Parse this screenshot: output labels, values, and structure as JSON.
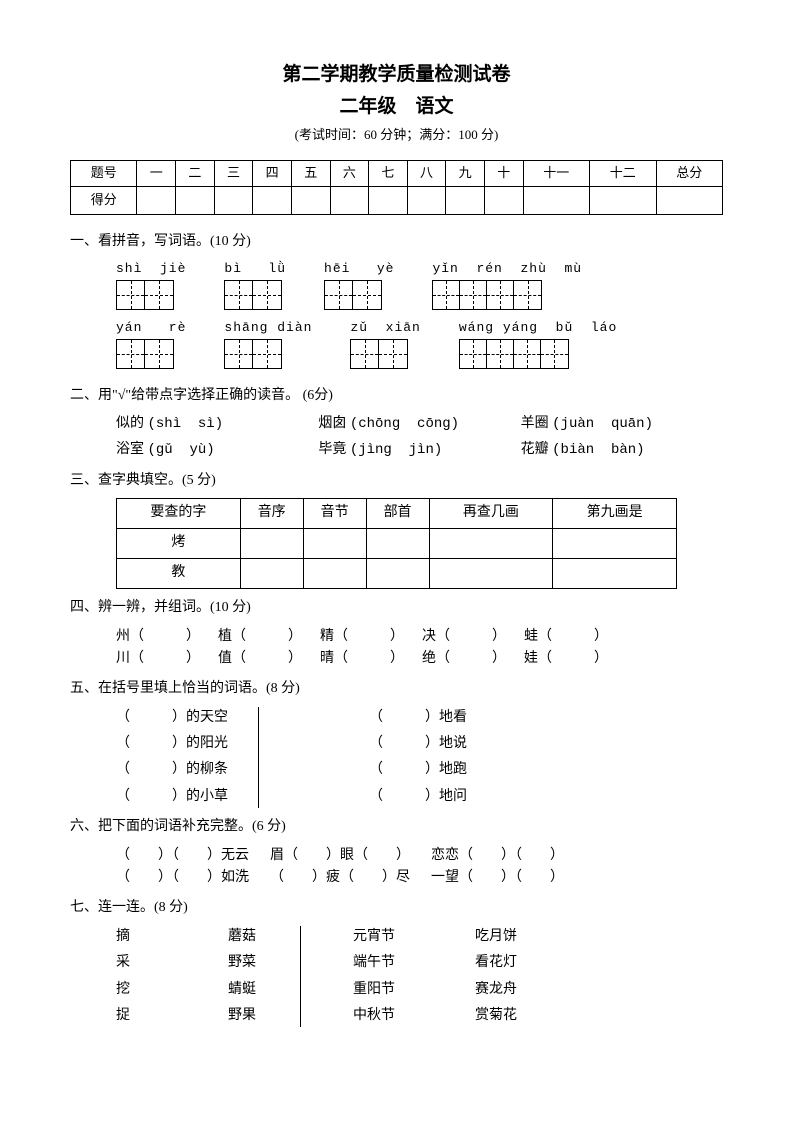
{
  "header": {
    "title": "第二学期教学质量检测试卷",
    "subtitle": "二年级　语文",
    "info": "(考试时间：60 分钟；满分：100 分)"
  },
  "score_table": {
    "row_labels": [
      "题号",
      "得分"
    ],
    "columns": [
      "一",
      "二",
      "三",
      "四",
      "五",
      "六",
      "七",
      "八",
      "九",
      "十",
      "十一",
      "十二",
      "总分"
    ]
  },
  "q1": {
    "head": "一、看拼音，写词语。(10 分)",
    "rows": [
      [
        {
          "pinyin": "shì  jiè",
          "boxes": 2
        },
        {
          "pinyin": "bì   lǜ",
          "boxes": 2
        },
        {
          "pinyin": "hēi   yè",
          "boxes": 2
        },
        {
          "pinyin": "yǐn  rén  zhù  mù",
          "boxes": 4
        }
      ],
      [
        {
          "pinyin": "yán   rè",
          "boxes": 2
        },
        {
          "pinyin": "shāng diàn",
          "boxes": 2
        },
        {
          "pinyin": "zǔ  xiān",
          "boxes": 2
        },
        {
          "pinyin": "wáng yáng  bǔ  láo",
          "boxes": 4
        }
      ]
    ]
  },
  "q2": {
    "head": "二、用\"√\"给带点字选择正确的读音。 (6分)",
    "items": [
      [
        "似的 ",
        "(shì  sì)"
      ],
      [
        "烟囱 ",
        "(chōng  cōng)"
      ],
      [
        "羊圈 ",
        "(juàn  quān)"
      ],
      [
        "浴室 ",
        "(gǔ  yù)"
      ],
      [
        "毕竟 ",
        "(jìng  jìn)"
      ],
      [
        "花瓣 ",
        "(biàn  bàn)"
      ]
    ]
  },
  "q3": {
    "head": "三、查字典填空。(5 分)",
    "headers": [
      "要查的字",
      "音序",
      "音节",
      "部首",
      "再查几画",
      "第九画是"
    ],
    "rows": [
      "烤",
      "教"
    ]
  },
  "q4": {
    "head": "四、辨一辨，并组词。(10 分)",
    "pairs": [
      [
        "州",
        "川"
      ],
      [
        "植",
        "值"
      ],
      [
        "精",
        "晴"
      ],
      [
        "决",
        "绝"
      ],
      [
        "蛙",
        "娃"
      ]
    ]
  },
  "q5": {
    "head": "五、在括号里填上恰当的词语。(8 分)",
    "left": [
      "的天空",
      "的阳光",
      "的柳条",
      "的小草"
    ],
    "right": [
      "地看",
      "地说",
      "地跑",
      "地问"
    ]
  },
  "q6": {
    "head": "六、把下面的词语补充完整。(6 分)",
    "lines": [
      "（　　）（　　）无云      眉（　　）眼（　　）      恋恋（　　）（　　）",
      "（　　）（　　）如洗      （　　）疲（　　）尽      一望（　　）（　　）"
    ]
  },
  "q7": {
    "head": "七、连一连。(8 分)",
    "colA": [
      "摘",
      "采",
      "挖",
      "捉"
    ],
    "colB": [
      "蘑菇",
      "野菜",
      "蜻蜓",
      "野果"
    ],
    "colC": [
      "元宵节",
      "端午节",
      "重阳节",
      "中秋节"
    ],
    "colD": [
      "吃月饼",
      "看花灯",
      "赛龙舟",
      "赏菊花"
    ]
  }
}
